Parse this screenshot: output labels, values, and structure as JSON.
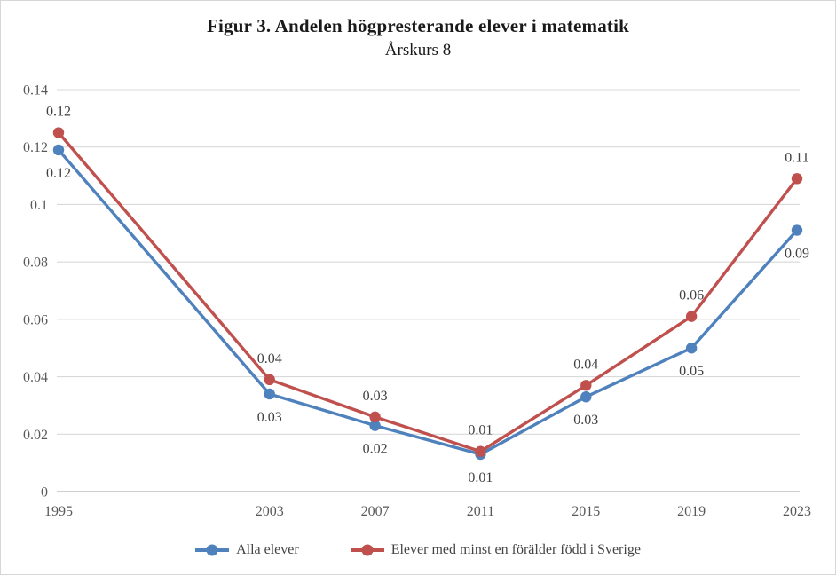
{
  "title": "Figur 3. Andelen högpresterande elever i matematik",
  "subtitle": "Årskurs 8",
  "colors": {
    "series_alla_elever": "#4F81BD",
    "series_foralder_sverige": "#C0504D",
    "gridline": "#D9D9D9",
    "axis_line": "#BFBFBF",
    "tick_text": "#595959",
    "data_label_text": "#404040"
  },
  "chart_data": {
    "type": "line",
    "x": [
      1995,
      2003,
      2007,
      2011,
      2015,
      2019,
      2023
    ],
    "x_tick_labels": [
      "1995",
      "2003",
      "2007",
      "2011",
      "2015",
      "2019",
      "2023"
    ],
    "series": [
      {
        "name": "Alla elever",
        "color": "#4F81BD",
        "values": [
          0.119,
          0.034,
          0.023,
          0.013,
          0.033,
          0.05,
          0.091
        ],
        "data_labels": [
          "0.12",
          "0.03",
          "0.02",
          "0.01",
          "0.03",
          "0.05",
          "0.09"
        ],
        "label_position": "below"
      },
      {
        "name": "Elever med minst en förälder född i Sverige",
        "color": "#C0504D",
        "values": [
          0.125,
          0.039,
          0.026,
          0.014,
          0.037,
          0.061,
          0.109
        ],
        "data_labels": [
          "0.12",
          "0.04",
          "0.03",
          "0.01",
          "0.04",
          "0.06",
          "0.11"
        ],
        "label_position": "above"
      }
    ],
    "y_ticks": [
      0,
      0.02,
      0.04,
      0.06,
      0.08,
      0.1,
      0.12,
      0.14
    ],
    "y_tick_labels": [
      "0",
      "0.02",
      "0.04",
      "0.06",
      "0.08",
      "0.1",
      "0.12",
      "0.14"
    ],
    "ylim": [
      0,
      0.14
    ],
    "grid": true,
    "legend_position": "bottom"
  }
}
